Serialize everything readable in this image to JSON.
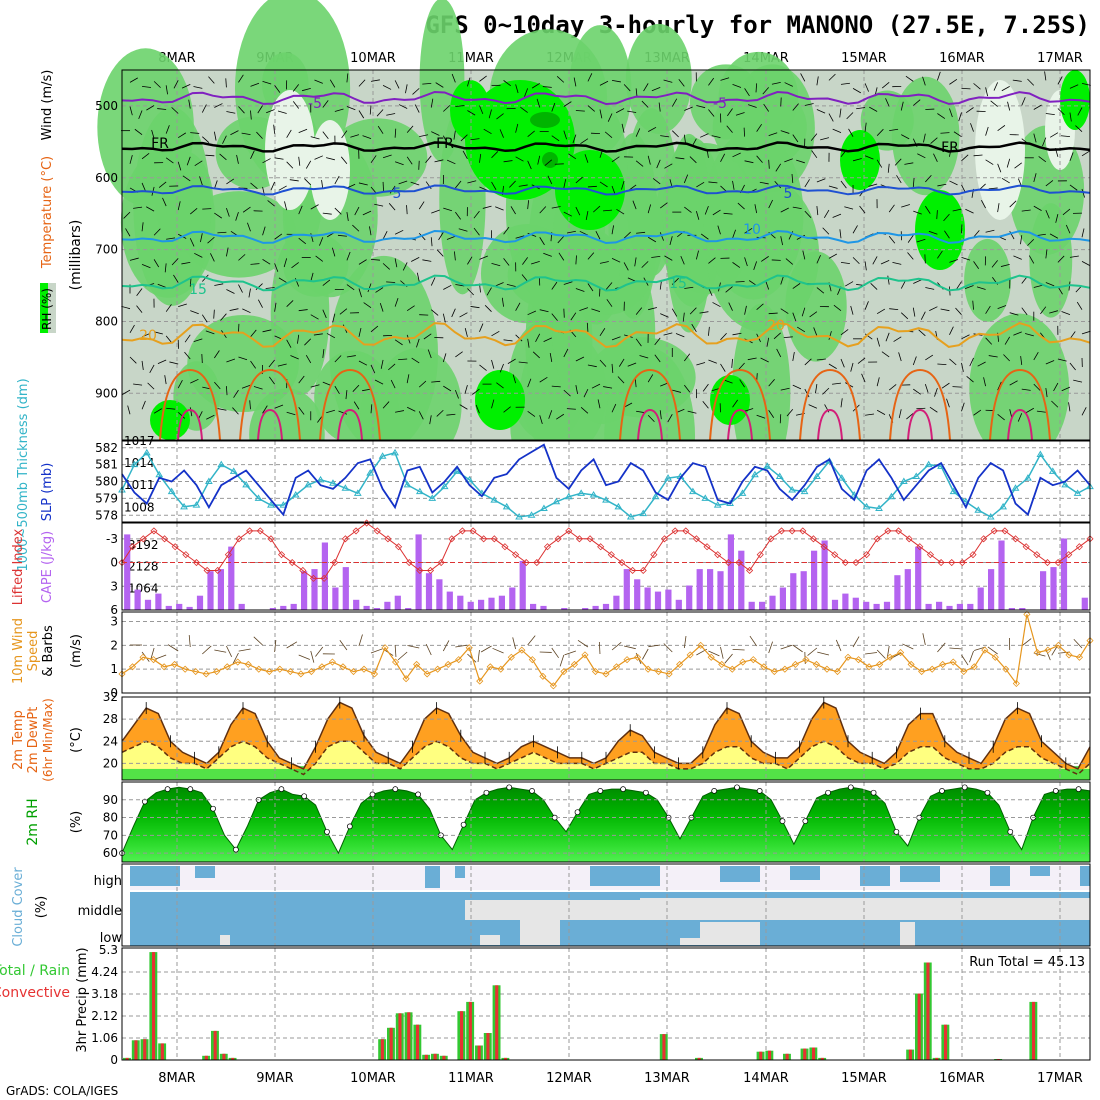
{
  "title": "GFS 0~10day 3-hourly for MANONO (27.5E, 7.25S)",
  "footer": "GrADS: COLA/IGES",
  "date_labels": [
    "8MAR",
    "9MAR",
    "10MAR",
    "11MAR",
    "12MAR",
    "13MAR",
    "14MAR",
    "15MAR",
    "16MAR",
    "17MAR"
  ],
  "colors": {
    "rh_light": "#c8d6c8",
    "rh_pale": "#e8f4e8",
    "rh_mid": "#6cd36c",
    "rh_bright": "#00f000",
    "rh_dark": "#00b400",
    "temp_purple": "#8020c0",
    "temp_black": "#000000",
    "temp_blue": "#1e50d2",
    "temp_lightblue": "#1e96e6",
    "temp_teal": "#1ec38c",
    "temp_orange": "#e6a01e",
    "temp_darkorange": "#e66414",
    "temp_magenta": "#d21e78",
    "slp": "#1432c8",
    "thickness": "#32b4c8",
    "cape": "#b464f0",
    "lifted": "#dc3232",
    "wind10m": "#e6961e",
    "temp2m_fill": "#ffa020",
    "dewpt_fill": "#ffff80",
    "rh2m_dark": "#00b400",
    "cloud": "#6aaed6",
    "precip_total": "#32c832",
    "precip_conv": "#e63232"
  },
  "panels": {
    "upper": {
      "ylabel_rh": "RH (%)",
      "ylabel_temp": "Temperature (°C)",
      "ylabel_wind": "Wind (m/s)",
      "ylabel_units": "(millibars)",
      "yticks": [
        "500",
        "600",
        "700",
        "800",
        "900"
      ],
      "contour_labels": [
        {
          "text": "-5",
          "color": "temp_purple"
        },
        {
          "text": "-5",
          "color": "temp_purple"
        },
        {
          "text": "FR",
          "color": "temp_black"
        },
        {
          "text": "FR",
          "color": "temp_black"
        },
        {
          "text": "FR",
          "color": "temp_black"
        },
        {
          "text": "5",
          "color": "temp_blue"
        },
        {
          "text": "5",
          "color": "temp_blue"
        },
        {
          "text": "10",
          "color": "temp_lightblue"
        },
        {
          "text": "15",
          "color": "temp_teal"
        },
        {
          "text": "15",
          "color": "temp_teal"
        },
        {
          "text": "20",
          "color": "temp_orange"
        },
        {
          "text": "20",
          "color": "temp_orange"
        }
      ]
    },
    "slp": {
      "label_thick": "1000~500mb Thickness (dm)",
      "label_slp": "SLP (mb)",
      "yticks_left": [
        "582",
        "581",
        "580",
        "579",
        "578"
      ],
      "yticks_right": [
        "1017",
        "1014",
        "1011",
        "1008"
      ]
    },
    "cape": {
      "label_lifted": "Lifted Index",
      "label_cape": "CAPE (J/kg)",
      "yticks_left": [
        "-3",
        "0",
        "3",
        "6"
      ],
      "yticks_right": [
        "3192",
        "2128",
        "1064"
      ]
    },
    "wind10m": {
      "label_a": "10m Wind",
      "label_b": "Speed",
      "label_c": "& Barbs",
      "units": "(m/s)",
      "yticks": [
        "3",
        "2",
        "1",
        "0"
      ]
    },
    "temp2m": {
      "label_a": "2m Temp",
      "label_b": "2m DewPt",
      "label_c": "(6hr Min/Max)",
      "units": "(°C)",
      "yticks": [
        "32",
        "28",
        "24",
        "20"
      ]
    },
    "rh2m": {
      "label": "2m RH",
      "units": "(%)",
      "yticks": [
        "90",
        "80",
        "70",
        "60"
      ]
    },
    "cloud": {
      "label": "Cloud Cover",
      "units": "(%)",
      "levels": [
        "high",
        "middle",
        "low"
      ]
    },
    "precip": {
      "label_total": "Total / Rain",
      "label_conv": "Convective",
      "ylabel": "3hr Precip (mm)",
      "yticks": [
        "5.3",
        "4.24",
        "3.18",
        "2.12",
        "1.06",
        "0"
      ],
      "run_total": "Run Total = 45.13"
    }
  },
  "chart_data": [
    {
      "type": "line",
      "name": "slp",
      "ylim": [
        1006,
        1017
      ],
      "values": [
        1012.5,
        1010,
        1008.5,
        1012,
        1011.5,
        1013,
        1011,
        1008,
        1011,
        1012,
        1013,
        1011,
        1009,
        1007,
        1012,
        1013,
        1011,
        1010.5,
        1012,
        1014,
        1014.5,
        1010.5,
        1008,
        1013,
        1013.5,
        1010,
        1011.5,
        1013.5,
        1011,
        1009.5,
        1012,
        1012.5,
        1014.5,
        1015.5,
        1016.5,
        1012,
        1010.5,
        1013,
        1014.5,
        1011,
        1011.5,
        1014,
        1013,
        1010,
        1009,
        1012,
        1014,
        1013.5,
        1009,
        1008.5,
        1011.5,
        1013.5,
        1013,
        1010.5,
        1009,
        1011,
        1013.5,
        1014.5,
        1010.5,
        1009,
        1013,
        1014.5,
        1012,
        1009,
        1011,
        1013,
        1014,
        1011,
        1008,
        1012,
        1014,
        1013,
        1008.5,
        1007,
        1012,
        1011,
        1011.5,
        1013,
        1011
      ]
    },
    {
      "type": "line",
      "name": "thickness",
      "ylim": [
        577.6,
        582.4
      ],
      "values": [
        579.5,
        581,
        581.7,
        580.4,
        579.4,
        578.5,
        578.6,
        580,
        581,
        580.6,
        579.8,
        579,
        578.6,
        578.6,
        579.2,
        579.8,
        580.1,
        579.9,
        579.6,
        579.3,
        580.5,
        581.5,
        581.7,
        579.8,
        579.4,
        579,
        579.7,
        580.6,
        580.1,
        579.3,
        578.9,
        578.5,
        577.9,
        578,
        578.4,
        578.8,
        579.1,
        579.3,
        579.2,
        578.9,
        578.5,
        577.9,
        578.1,
        579.1,
        580.2,
        580.3,
        579.4,
        579,
        578.6,
        578.7,
        579.3,
        580.4,
        580.9,
        580.3,
        579.5,
        579.4,
        580.3,
        581.2,
        580.2,
        579.2,
        578.5,
        578.4,
        579.1,
        580,
        580.3,
        581,
        580.9,
        579.4,
        578.8,
        578.3,
        577.9,
        578.5,
        579.6,
        580.2,
        581.6,
        580.6,
        579.8,
        579.3,
        579.7
      ]
    },
    {
      "type": "bar",
      "name": "cape",
      "ylim": [
        0,
        4256
      ],
      "values": [
        3700,
        1000,
        500,
        800,
        200,
        300,
        150,
        700,
        1900,
        2000,
        3100,
        300,
        0,
        0,
        100,
        200,
        300,
        1900,
        2000,
        3300,
        1100,
        2100,
        500,
        200,
        100,
        400,
        700,
        100,
        3700,
        1800,
        1500,
        900,
        700,
        400,
        500,
        600,
        700,
        1100,
        2400,
        300,
        200,
        0,
        100,
        0,
        100,
        200,
        300,
        700,
        2000,
        1500,
        1100,
        900,
        1000,
        500,
        1200,
        2000,
        2000,
        1900,
        3700,
        2900,
        400,
        400,
        700,
        1100,
        1800,
        1900,
        2900,
        3400,
        500,
        800,
        600,
        400,
        300,
        400,
        1700,
        2000,
        3100,
        300,
        400,
        200,
        300,
        300,
        1100,
        2000,
        3400,
        100,
        100,
        0,
        1900,
        2100,
        3500,
        0,
        600
      ]
    },
    {
      "type": "line",
      "name": "lifted_index",
      "ylim": [
        6,
        -5
      ],
      "values": [
        0,
        -2,
        -3,
        -4,
        -3,
        -2,
        -1,
        0,
        1,
        1,
        -1,
        -3,
        -4,
        -4,
        -3,
        -1,
        0,
        1,
        2,
        2,
        0,
        -3,
        -4,
        -5,
        -4,
        -3,
        -2,
        0,
        1,
        1,
        0,
        -3,
        -4,
        -4,
        -3,
        -3,
        -2,
        -1,
        0,
        0,
        -2,
        -3,
        -4,
        -3,
        -3,
        -2,
        -1,
        0,
        1,
        1,
        -1,
        -3,
        -4,
        -4,
        -3,
        -2,
        -1,
        0,
        0,
        1,
        -1,
        -3,
        -4,
        -4,
        -4,
        -3,
        -2,
        -1,
        0,
        0,
        -1,
        -3,
        -4,
        -4,
        -3,
        -2,
        -1,
        0,
        0,
        0,
        -1,
        -3,
        -4,
        -4,
        -3,
        -2,
        -1,
        0,
        0,
        -1,
        -2,
        -3
      ]
    },
    {
      "type": "line",
      "name": "wind10m_speed",
      "ylim": [
        0,
        3.4
      ],
      "values": [
        0.8,
        1.1,
        1.5,
        1.4,
        1.1,
        1.2,
        1.0,
        0.9,
        0.8,
        0.9,
        1.1,
        1.3,
        1.2,
        1.0,
        0.9,
        1.0,
        0.9,
        0.8,
        0.9,
        1.1,
        1.3,
        1.1,
        0.9,
        1.0,
        0.8,
        1.9,
        1.3,
        0.6,
        1.2,
        0.8,
        1.0,
        1.2,
        1.4,
        1.9,
        0.5,
        1.1,
        1.0,
        1.5,
        1.8,
        1.4,
        0.7,
        0.3,
        0.9,
        1.2,
        1.6,
        0.9,
        0.8,
        1.1,
        1.4,
        1.5,
        1.0,
        0.9,
        0.8,
        1.2,
        1.6,
        2.0,
        1.5,
        1.2,
        1.0,
        1.3,
        1.4,
        1.1,
        0.9,
        1.0,
        1.2,
        1.4,
        1.2,
        1.0,
        0.9,
        1.5,
        1.4,
        1.1,
        1.2,
        1.5,
        1.7,
        1.2,
        0.9,
        1.0,
        1.2,
        1.3,
        0.9,
        1.1,
        1.8,
        1.5,
        1.0,
        0.4,
        3.3,
        1.7,
        1.8,
        2.0,
        1.6,
        1.5,
        2.2
      ]
    },
    {
      "type": "area",
      "name": "temp2m",
      "ylim": [
        17,
        32
      ],
      "values": [
        24,
        27,
        30,
        29,
        24,
        22,
        21,
        20,
        22,
        27,
        30,
        29,
        24,
        21,
        20,
        19,
        23,
        28,
        31,
        30,
        25,
        22,
        21,
        20,
        23,
        28,
        30,
        29,
        25,
        22,
        21,
        20,
        21,
        23,
        24,
        23,
        22,
        21,
        21,
        20,
        21,
        24,
        26,
        25,
        22,
        21,
        20,
        20,
        22,
        27,
        30,
        29,
        24,
        22,
        21,
        21,
        23,
        28,
        31,
        30,
        24,
        22,
        21,
        20,
        22,
        27,
        29,
        29,
        24,
        22,
        21,
        20,
        23,
        28,
        30,
        29,
        24,
        22,
        20,
        19,
        23
      ]
    },
    {
      "type": "area",
      "name": "dewpt2m",
      "ylim": [
        17,
        32
      ],
      "values": [
        22,
        23,
        24,
        23,
        21,
        20,
        20,
        19,
        21,
        23,
        24,
        23,
        21,
        20,
        19,
        18,
        20,
        23,
        24,
        24,
        22,
        20,
        20,
        19,
        21,
        23,
        24,
        23,
        21,
        20,
        20,
        19,
        20,
        21,
        22,
        21,
        20,
        20,
        20,
        19,
        20,
        21,
        22,
        22,
        20,
        20,
        19,
        19,
        20,
        22,
        23,
        23,
        21,
        20,
        20,
        19,
        21,
        23,
        24,
        23,
        21,
        20,
        20,
        19,
        20,
        22,
        23,
        23,
        21,
        20,
        19,
        19,
        20,
        22,
        23,
        23,
        21,
        20,
        19,
        18,
        20
      ]
    },
    {
      "type": "area",
      "name": "rh2m",
      "ylim": [
        55,
        100
      ],
      "values": [
        60,
        75,
        89,
        94,
        96,
        97,
        96,
        94,
        85,
        70,
        62,
        75,
        90,
        94,
        96,
        93,
        92,
        87,
        72,
        60,
        75,
        88,
        93,
        95,
        96,
        95,
        93,
        85,
        70,
        62,
        76,
        90,
        94,
        96,
        97,
        96,
        95,
        90,
        80,
        72,
        83,
        93,
        95,
        96,
        96,
        95,
        94,
        90,
        80,
        68,
        80,
        92,
        95,
        96,
        97,
        96,
        95,
        90,
        78,
        65,
        78,
        91,
        94,
        96,
        97,
        96,
        94,
        88,
        72,
        64,
        80,
        92,
        95,
        96,
        97,
        96,
        94,
        87,
        72,
        62,
        80,
        93,
        95,
        96,
        96,
        95
      ]
    },
    {
      "type": "bar",
      "name": "precip_3hr",
      "ylim": [
        0,
        5.3
      ],
      "categories_note": "3-hourly",
      "values": [
        0.1,
        0.95,
        1.0,
        5.2,
        0.8,
        0,
        0,
        0,
        0,
        0.2,
        1.4,
        0.3,
        0.1,
        0,
        0,
        0,
        0,
        0,
        0,
        0,
        0,
        0,
        0,
        0,
        0,
        0,
        0,
        0,
        0,
        1.0,
        1.55,
        2.25,
        2.3,
        1.7,
        0.25,
        0.3,
        0.2,
        0,
        2.35,
        2.8,
        0.7,
        1.3,
        3.6,
        0.1,
        0,
        0,
        0,
        0,
        0,
        0,
        0,
        0,
        0,
        0,
        0,
        0,
        0,
        0,
        0,
        0,
        0,
        1.25,
        0,
        0,
        0,
        0.1,
        0,
        0,
        0,
        0,
        0,
        0,
        0.4,
        0.45,
        0,
        0.3,
        0,
        0.55,
        0.6,
        0.1,
        0,
        0,
        0,
        0,
        0,
        0,
        0,
        0,
        0,
        0.5,
        3.2,
        4.7,
        0.1,
        1.7,
        0,
        0,
        0,
        0,
        0,
        0.05,
        0,
        0,
        0,
        2.8,
        0,
        0,
        0,
        0,
        0,
        0
      ]
    }
  ]
}
